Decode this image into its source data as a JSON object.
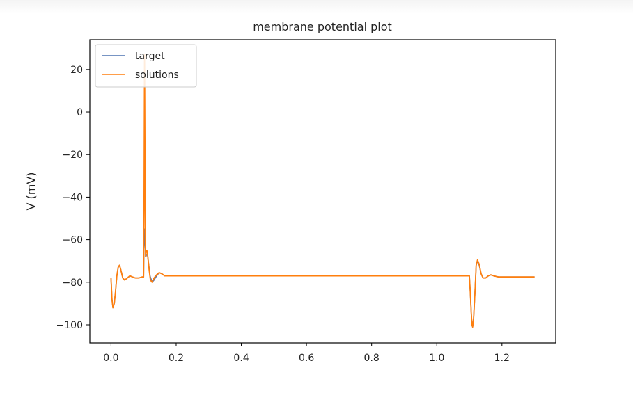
{
  "chart_data": {
    "type": "line",
    "title": "membrane potential plot",
    "xlabel": "",
    "ylabel": "V (mV)",
    "xlim": [
      -0.065,
      1.365
    ],
    "ylim": [
      -108.5,
      34
    ],
    "xticks": [
      0.0,
      0.2,
      0.4,
      0.6,
      0.8,
      1.0,
      1.2
    ],
    "xtick_labels": [
      "0.0",
      "0.2",
      "0.4",
      "0.6",
      "0.8",
      "1.0",
      "1.2"
    ],
    "yticks": [
      20,
      0,
      -20,
      -40,
      -60,
      -80,
      -100
    ],
    "ytick_labels": [
      "20",
      "0",
      "−20",
      "−40",
      "−60",
      "−80",
      "−100"
    ],
    "grid": false,
    "legend_position": "top-left",
    "series": [
      {
        "name": "target",
        "color": "#4c72b0",
        "x": [
          0.0,
          0.003,
          0.006,
          0.01,
          0.014,
          0.018,
          0.022,
          0.026,
          0.03,
          0.036,
          0.042,
          0.05,
          0.058,
          0.066,
          0.075,
          0.085,
          0.095,
          0.1,
          0.1015,
          0.103,
          0.105,
          0.107,
          0.109,
          0.112,
          0.116,
          0.12,
          0.126,
          0.132,
          0.14,
          0.148,
          0.156,
          0.165,
          0.175,
          0.19,
          0.2,
          0.4,
          0.8,
          1.0,
          1.099,
          1.1,
          1.103,
          1.106,
          1.108,
          1.11,
          1.113,
          1.117,
          1.121,
          1.125,
          1.13,
          1.136,
          1.142,
          1.15,
          1.158,
          1.166,
          1.175,
          1.19,
          1.21,
          1.3
        ],
        "values": [
          -78,
          -88,
          -92,
          -90,
          -84,
          -77,
          -73,
          -72,
          -74,
          -78,
          -79,
          -78,
          -77,
          -77.5,
          -78,
          -78,
          -77.5,
          -77.5,
          -60,
          -55,
          -63,
          -68,
          -67,
          -67,
          -72,
          -77,
          -80,
          -79,
          -77,
          -75.5,
          -76,
          -77,
          -77,
          -77,
          -77,
          -77,
          -77,
          -77,
          -77,
          -77,
          -85,
          -95,
          -100,
          -101,
          -97,
          -85,
          -72,
          -70,
          -72,
          -76,
          -78,
          -78,
          -77,
          -76.5,
          -77,
          -77.5,
          -77.5,
          -77.5
        ]
      },
      {
        "name": "solutions",
        "color": "#ff7f0e",
        "x": [
          0.0,
          0.003,
          0.006,
          0.01,
          0.014,
          0.018,
          0.022,
          0.026,
          0.03,
          0.036,
          0.042,
          0.05,
          0.058,
          0.066,
          0.075,
          0.085,
          0.095,
          0.1,
          0.1015,
          0.103,
          0.1045,
          0.106,
          0.108,
          0.11,
          0.113,
          0.117,
          0.121,
          0.126,
          0.132,
          0.14,
          0.148,
          0.156,
          0.165,
          0.175,
          0.19,
          0.2,
          0.4,
          0.8,
          1.0,
          1.099,
          1.1,
          1.103,
          1.106,
          1.108,
          1.11,
          1.113,
          1.117,
          1.121,
          1.125,
          1.13,
          1.136,
          1.142,
          1.15,
          1.158,
          1.166,
          1.175,
          1.19,
          1.21,
          1.3
        ],
        "values": [
          -78,
          -88,
          -92,
          -90,
          -84,
          -77,
          -73,
          -72,
          -74,
          -78,
          -79,
          -78,
          -77,
          -77.5,
          -78,
          -78,
          -77.5,
          -77.5,
          -40,
          27,
          -30,
          -68,
          -65,
          -65,
          -68,
          -74,
          -79,
          -80,
          -78,
          -76.5,
          -75.5,
          -76,
          -77,
          -77,
          -77,
          -77,
          -77,
          -77,
          -77,
          -77,
          -77,
          -85,
          -95,
          -100,
          -101,
          -97,
          -85,
          -72,
          -69.5,
          -71.5,
          -76,
          -78,
          -78,
          -77,
          -76.5,
          -77,
          -77.5,
          -77.5,
          -77.5
        ]
      }
    ]
  }
}
